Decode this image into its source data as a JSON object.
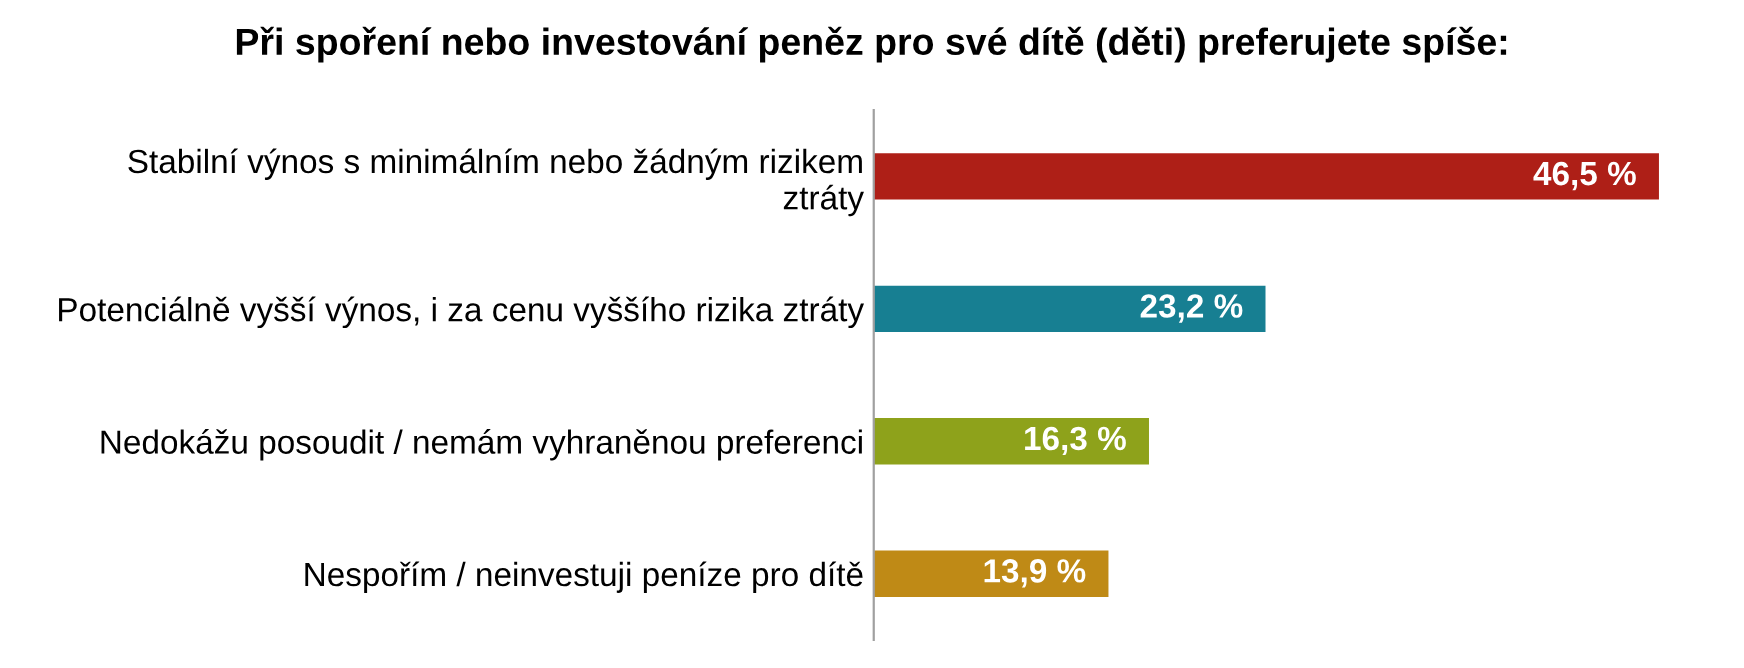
{
  "chart_data": {
    "type": "bar",
    "orientation": "horizontal",
    "title": "Při spoření nebo investování peněz pro své dítě (děti) preferujete spíše:",
    "categories": [
      "Stabilní výnos s minimálním nebo žádným rizikem\nztráty",
      "Potenciálně vyšší výnos, i za cenu vyššího rizika ztráty",
      "Nedokážu posoudit / nemám vyhraněnou preferenci",
      "Nespořím / neinvestuji peníze pro dítě"
    ],
    "values": [
      46.5,
      23.2,
      16.3,
      13.9
    ],
    "value_labels": [
      "46,5 %",
      "23,2 %",
      "16,3 %",
      "13,9 %"
    ],
    "colors": [
      "#ae1f17",
      "#177f92",
      "#8ea21b",
      "#bf8a16"
    ],
    "tick_labels": "y",
    "grid": false,
    "legend": false
  }
}
